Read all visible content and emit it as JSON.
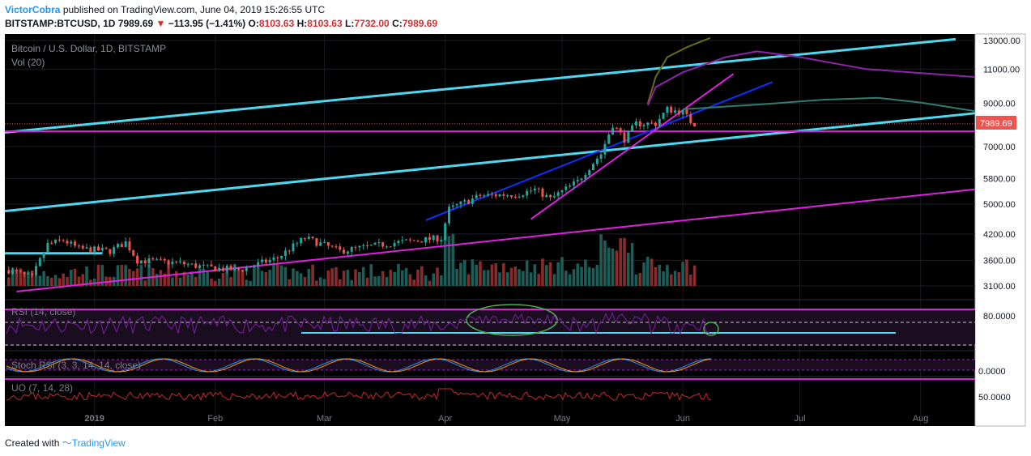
{
  "header": {
    "author": "VictorCobra",
    "published": "published on TradingView.com, June 04, 2019 15:26:55 UTC",
    "symbol": "BITSTAMP:BTCUSD, 1D",
    "last": "7989.69",
    "change_arrow": "▼",
    "change": "−113.95 (−1.41%)",
    "o_label": "O:",
    "o_value": "8103.63",
    "h_label": "H:",
    "h_value": "8103.63",
    "l_label": "L:",
    "l_value": "7732.00",
    "c_label": "C:",
    "c_value": "7989.69"
  },
  "footer": {
    "prefix": "Created with",
    "brand": "TradingView"
  },
  "colors": {
    "background": "#000000",
    "up": "#26a69a",
    "down": "#ef5350",
    "cyan": "#4dd8f0",
    "magenta": "#e020e0",
    "blue": "#1030ff",
    "purple": "#9c27b0",
    "price_tag": "#ef5350"
  },
  "chart_data": {
    "type": "candlestick",
    "title": "Bitcoin / U.S. Dollar, 1D, BITSTAMP",
    "volume_label": "Vol (20)",
    "price_axis_ticks": [
      "13000.00",
      "11000.00",
      "9000.00",
      "7000.00",
      "5800.00",
      "5000.00",
      "4200.00",
      "3600.00",
      "3100.00"
    ],
    "last_price_label": "7989.69",
    "x_axis_labels": [
      "2019",
      "Feb",
      "Mar",
      "Apr",
      "May",
      "Jun",
      "Jul",
      "Aug"
    ],
    "date_range": [
      "2018-12-09",
      "2019-08-15"
    ],
    "close_series": [
      {
        "date": "2018-12-10",
        "price": 3400
      },
      {
        "date": "2018-12-16",
        "price": 3250
      },
      {
        "date": "2018-12-20",
        "price": 3950
      },
      {
        "date": "2018-12-24",
        "price": 4050
      },
      {
        "date": "2018-12-28",
        "price": 3850
      },
      {
        "date": "2019-01-05",
        "price": 3800
      },
      {
        "date": "2019-01-09",
        "price": 4000
      },
      {
        "date": "2019-01-12",
        "price": 3600
      },
      {
        "date": "2019-01-22",
        "price": 3550
      },
      {
        "date": "2019-01-30",
        "price": 3450
      },
      {
        "date": "2019-02-07",
        "price": 3400
      },
      {
        "date": "2019-02-17",
        "price": 3650
      },
      {
        "date": "2019-02-24",
        "price": 4100
      },
      {
        "date": "2019-03-05",
        "price": 3800
      },
      {
        "date": "2019-03-20",
        "price": 4000
      },
      {
        "date": "2019-03-31",
        "price": 4100
      },
      {
        "date": "2019-04-02",
        "price": 4850
      },
      {
        "date": "2019-04-10",
        "price": 5250
      },
      {
        "date": "2019-04-20",
        "price": 5300
      },
      {
        "date": "2019-04-24",
        "price": 5450
      },
      {
        "date": "2019-04-28",
        "price": 5150
      },
      {
        "date": "2019-05-05",
        "price": 5700
      },
      {
        "date": "2019-05-11",
        "price": 6700
      },
      {
        "date": "2019-05-14",
        "price": 7950
      },
      {
        "date": "2019-05-17",
        "price": 7300
      },
      {
        "date": "2019-05-20",
        "price": 8000
      },
      {
        "date": "2019-05-25",
        "price": 8000
      },
      {
        "date": "2019-05-28",
        "price": 8700
      },
      {
        "date": "2019-06-01",
        "price": 8550
      },
      {
        "date": "2019-06-03",
        "price": 8100
      },
      {
        "date": "2019-06-04",
        "price": 7990
      }
    ],
    "drawings": [
      {
        "name": "upper-channel-line",
        "color": "cyan",
        "from": {
          "date": "2018-12-09",
          "price": 7600
        },
        "to": {
          "date": "2019-08-10",
          "price": 13100
        }
      },
      {
        "name": "lower-channel-line",
        "color": "cyan",
        "from": {
          "date": "2018-12-09",
          "price": 4800
        },
        "to": {
          "date": "2019-08-15",
          "price": 8500
        }
      },
      {
        "name": "horizontal-resistance",
        "color": "magenta",
        "from": {
          "date": "2018-12-09",
          "price": 7650
        },
        "to": {
          "date": "2019-08-15",
          "price": 7650
        }
      },
      {
        "name": "long-support-line",
        "color": "magenta",
        "from": {
          "date": "2018-12-12",
          "price": 3000
        },
        "to": {
          "date": "2019-08-15",
          "price": 5450
        }
      },
      {
        "name": "march-april-trendline",
        "color": "blue",
        "from": {
          "date": "2019-03-27",
          "price": 4550
        },
        "to": {
          "date": "2019-06-24",
          "price": 10200
        }
      },
      {
        "name": "may-steep-trendline",
        "color": "magenta",
        "from": {
          "date": "2019-04-23",
          "price": 4580
        },
        "to": {
          "date": "2019-06-14",
          "price": 10700
        }
      },
      {
        "name": "december-level",
        "color": "cyan",
        "from": {
          "date": "2018-12-09",
          "price": 3750
        },
        "to": {
          "date": "2019-01-03",
          "price": 3750
        }
      }
    ],
    "moving_averages": [
      {
        "name": "olive-ma",
        "color": "#6b6b10",
        "points": [
          {
            "date": "2019-05-23",
            "price": 9000
          },
          {
            "date": "2019-05-25",
            "price": 10500
          },
          {
            "date": "2019-05-28",
            "price": 11800
          },
          {
            "date": "2019-06-02",
            "price": 12500
          },
          {
            "date": "2019-06-08",
            "price": 13200
          }
        ]
      },
      {
        "name": "purple-ma",
        "color": "#8e24aa",
        "points": [
          {
            "date": "2019-05-23",
            "price": 8900
          },
          {
            "date": "2019-05-25",
            "price": 9900
          },
          {
            "date": "2019-06-01",
            "price": 10800
          },
          {
            "date": "2019-06-12",
            "price": 11800
          },
          {
            "date": "2019-06-20",
            "price": 12200
          },
          {
            "date": "2019-07-01",
            "price": 11800
          },
          {
            "date": "2019-07-18",
            "price": 11000
          },
          {
            "date": "2019-08-15",
            "price": 10500
          }
        ]
      },
      {
        "name": "teal-ma",
        "color": "#2e7d6e",
        "points": [
          {
            "date": "2019-06-01",
            "price": 8700
          },
          {
            "date": "2019-06-21",
            "price": 8950
          },
          {
            "date": "2019-07-07",
            "price": 9200
          },
          {
            "date": "2019-07-21",
            "price": 9300
          },
          {
            "date": "2019-08-01",
            "price": 9050
          },
          {
            "date": "2019-08-15",
            "price": 8600
          }
        ]
      }
    ],
    "indicators": [
      {
        "name": "RSI",
        "label": "RSI (14, close)",
        "tick": "80.0000",
        "levels": [
          80,
          70,
          30
        ]
      },
      {
        "name": "Stoch RSI",
        "label": "Stoch RSI (3, 3, 14, 14, close)",
        "tick": "0.0000"
      },
      {
        "name": "UO",
        "label": "UO (7, 14, 28)",
        "tick": "50.0000"
      }
    ]
  }
}
